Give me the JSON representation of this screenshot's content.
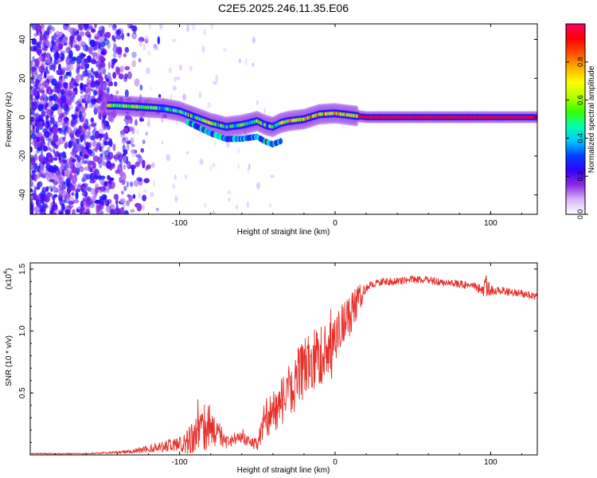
{
  "figure_title": "C2E5.2025.246.11.35.E06",
  "chart_data": [
    {
      "type": "heatmap",
      "title": "C2E5.2025.246.11.35.E06",
      "xlabel": "Height of straight line (km)",
      "ylabel": "Frequency (Hz)",
      "xlim": [
        -196,
        130
      ],
      "ylim": [
        -50,
        48
      ],
      "xticks": [
        -100,
        0,
        100
      ],
      "xtick_labels": [
        "-100",
        "0",
        "100"
      ],
      "yticks": [
        -40,
        -20,
        0,
        20,
        40
      ],
      "ytick_labels": [
        "-40",
        "-20",
        "0",
        "20",
        "40"
      ],
      "colorbar": {
        "label": "Normalized spectral amplitude",
        "range": [
          0,
          1
        ],
        "ticks": [
          0,
          0.2,
          0.4,
          0.6,
          0.8
        ],
        "tick_labels": [
          "0.0",
          "0.2",
          "0.4",
          "0.6",
          "0.8"
        ],
        "colors": [
          "#ffffff",
          "#d9b3ff",
          "#8a2be2",
          "#3300ff",
          "#0040ff",
          "#00c8ff",
          "#00ffb0",
          "#33ff00",
          "#b0ff00",
          "#ffff00",
          "#ffb000",
          "#ff5000",
          "#ff0000",
          "#ff0066"
        ]
      },
      "ridge": {
        "name": "dominant frequency",
        "x": [
          -140,
          -130,
          -120,
          -110,
          -100,
          -90,
          -80,
          -70,
          -60,
          -50,
          -45,
          -40,
          -35,
          -30,
          -20,
          -10,
          0,
          10,
          20,
          40,
          60,
          80,
          100,
          130
        ],
        "y": [
          6,
          5.5,
          5,
          4.5,
          3,
          0,
          -3,
          -5,
          -4,
          -2,
          -4,
          -5,
          -3,
          -2,
          -1,
          1.5,
          2,
          1,
          0,
          0,
          0,
          0,
          0,
          0
        ]
      }
    },
    {
      "type": "line",
      "xlabel": "Height of straight line (km)",
      "ylabel": "SNR (10 * v/v)",
      "y_scale_label": "(x10",
      "y_scale_exponent": "4",
      "xlim": [
        -196,
        130
      ],
      "ylim": [
        0,
        1.55
      ],
      "xticks": [
        -100,
        0,
        100
      ],
      "xtick_labels": [
        "-100",
        "0",
        "100"
      ],
      "yticks": [
        0.5,
        1.0,
        1.5
      ],
      "ytick_labels": [
        "0.5",
        "1.0",
        "1.5"
      ],
      "series": [
        {
          "name": "SNR",
          "color": "#e8302a",
          "x": [
            -196,
            -160,
            -140,
            -130,
            -120,
            -110,
            -100,
            -95,
            -90,
            -85,
            -80,
            -75,
            -70,
            -65,
            -60,
            -55,
            -50,
            -45,
            -40,
            -35,
            -30,
            -25,
            -20,
            -15,
            -10,
            -5,
            0,
            5,
            10,
            15,
            20,
            25,
            30,
            40,
            50,
            60,
            70,
            80,
            90,
            95,
            97,
            100,
            110,
            120,
            130
          ],
          "y": [
            0.01,
            0.01,
            0.02,
            0.03,
            0.05,
            0.07,
            0.09,
            0.12,
            0.16,
            0.2,
            0.24,
            0.18,
            0.1,
            0.12,
            0.14,
            0.1,
            0.08,
            0.3,
            0.35,
            0.42,
            0.5,
            0.6,
            0.7,
            0.75,
            0.8,
            0.85,
            0.92,
            1.05,
            1.15,
            1.25,
            1.35,
            1.38,
            1.4,
            1.4,
            1.42,
            1.41,
            1.39,
            1.38,
            1.36,
            1.32,
            1.35,
            1.33,
            1.32,
            1.3,
            1.28
          ],
          "noise": [
            0.005,
            0.005,
            0.01,
            0.02,
            0.03,
            0.05,
            0.06,
            0.12,
            0.15,
            0.2,
            0.18,
            0.1,
            0.05,
            0.04,
            0.05,
            0.05,
            0.05,
            0.15,
            0.18,
            0.2,
            0.22,
            0.25,
            0.25,
            0.25,
            0.25,
            0.22,
            0.2,
            0.2,
            0.18,
            0.12,
            0.04,
            0.03,
            0.03,
            0.03,
            0.03,
            0.03,
            0.03,
            0.03,
            0.03,
            0.05,
            0.12,
            0.04,
            0.03,
            0.03,
            0.03
          ]
        }
      ]
    }
  ]
}
